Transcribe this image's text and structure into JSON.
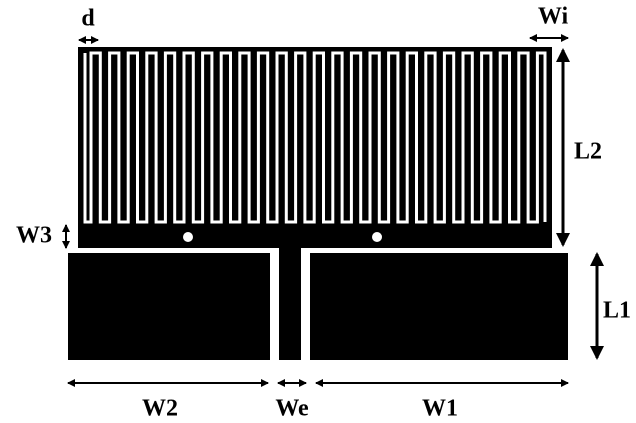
{
  "labels": {
    "d": "d",
    "wi": "Wi",
    "l2": "L2",
    "w3": "W3",
    "l1": "L1",
    "w2": "W2",
    "we": "We",
    "w1": "W1"
  }
}
